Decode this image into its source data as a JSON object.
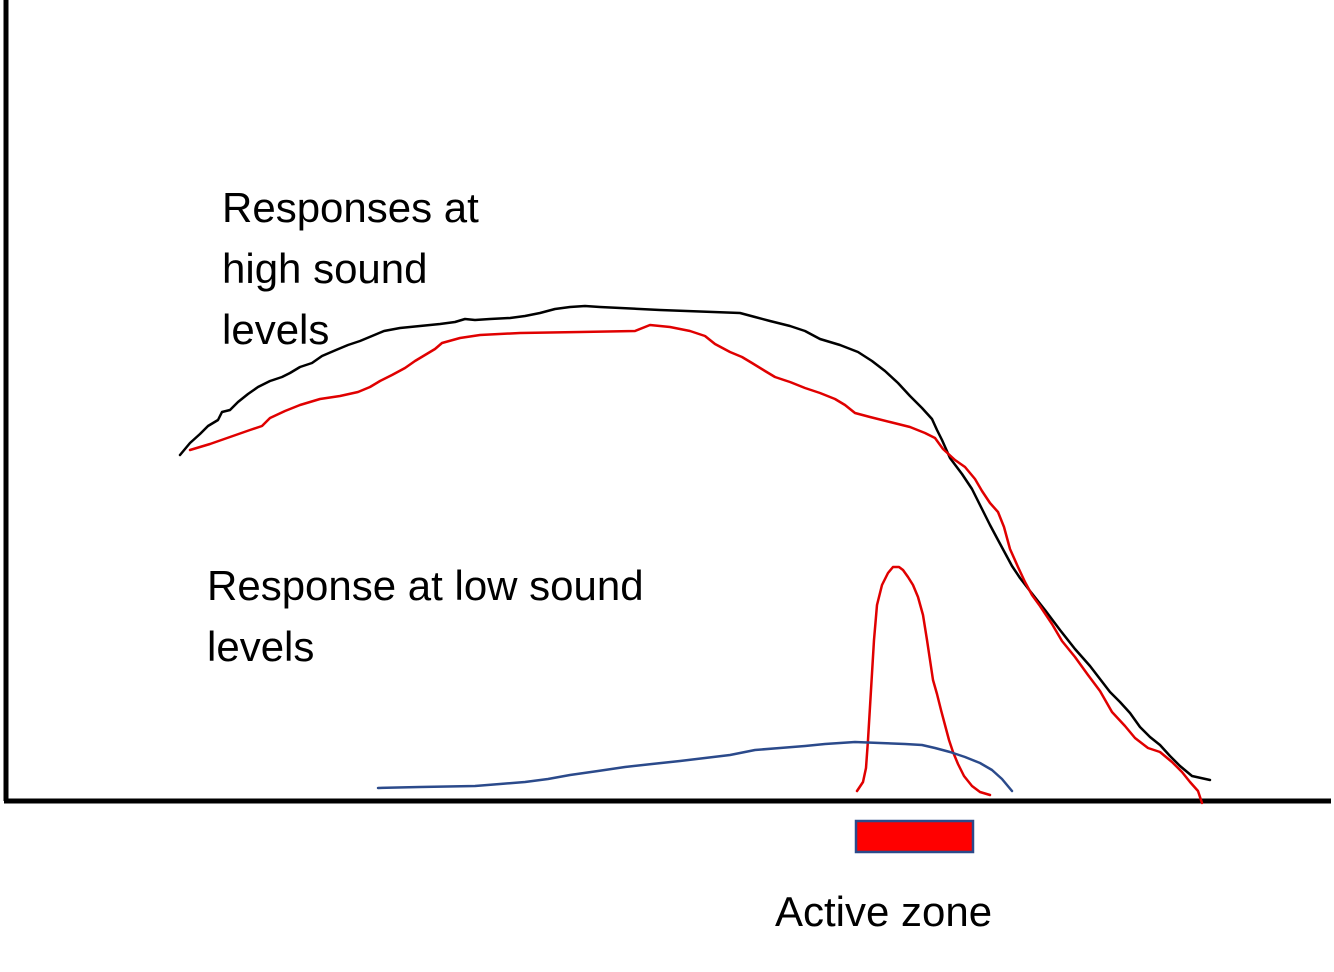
{
  "figure": {
    "labels": {
      "high_levels": [
        "Responses at",
        "high sound",
        "levels"
      ],
      "low_levels": [
        "Response at low sound",
        "levels"
      ],
      "active_zone": "Active zone"
    },
    "curves": [
      {
        "name": "high-level-black",
        "color": "#000000"
      },
      {
        "name": "high-level-red",
        "color": "#e00000"
      },
      {
        "name": "low-level-red-peak",
        "color": "#e00000"
      },
      {
        "name": "low-level-blue",
        "color": "#2b4a8b"
      }
    ],
    "active_zone_bar": {
      "fill": "#ff0000",
      "stroke": "#2b4a8b"
    }
  }
}
